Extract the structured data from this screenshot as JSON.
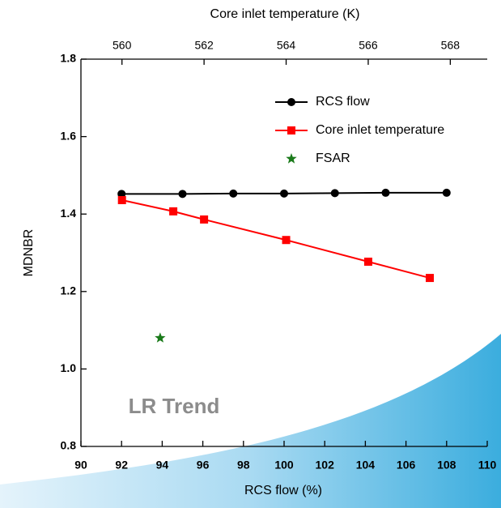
{
  "chart_data": {
    "type": "line",
    "xlabel": "RCS flow (%)",
    "x2label": "Core inlet temperature (K)",
    "ylabel": "MDNBR",
    "annotation": "LR Trend",
    "xlim": [
      90,
      110
    ],
    "xticks": [
      90,
      92,
      94,
      96,
      98,
      100,
      102,
      104,
      106,
      108,
      110
    ],
    "x2lim": [
      559,
      568.9
    ],
    "x2ticks": [
      560,
      562,
      564,
      566,
      568
    ],
    "ylim": [
      0.8,
      1.8
    ],
    "yticks": [
      0.8,
      {
        "value": 1,
        "label": "1.0"
      },
      1.2,
      1.4,
      1.6,
      1.8
    ],
    "series": [
      {
        "name": "RCS flow",
        "color": "#000000",
        "marker": "circle",
        "x": [
          92,
          95,
          97.5,
          100,
          102.5,
          105,
          108
        ],
        "values": [
          1.452,
          1.452,
          1.453,
          1.453,
          1.454,
          1.455,
          1.455
        ]
      },
      {
        "name": "Core inlet temperature",
        "color": "#ff0000",
        "marker": "square",
        "axis": "x2",
        "x": [
          560,
          561.25,
          562,
          564,
          566,
          567.5
        ],
        "values": [
          1.436,
          1.407,
          1.386,
          1.333,
          1.277,
          1.235
        ]
      },
      {
        "name": "FSAR",
        "color": "#1a7a1a",
        "marker": "star",
        "x": [
          93.9
        ],
        "values": [
          1.08
        ]
      }
    ]
  }
}
